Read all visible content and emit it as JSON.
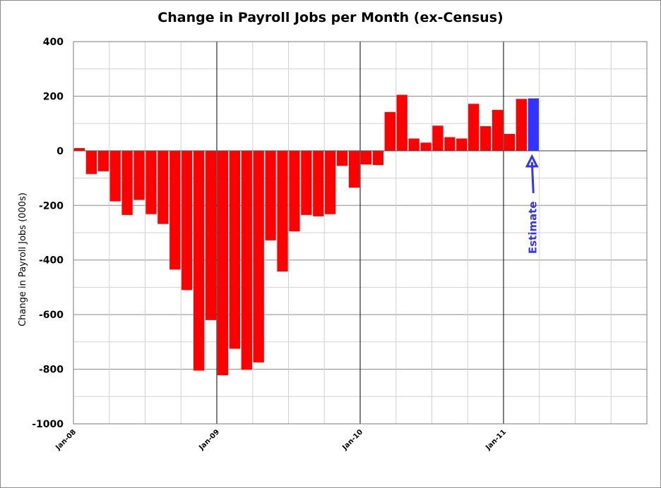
{
  "chart_data": {
    "type": "bar",
    "title": "Change in Payroll Jobs per Month (ex-Census)",
    "xlabel": "",
    "ylabel": "Change in Payroll Jobs (000s)",
    "ylim": [
      -1000,
      400
    ],
    "yticks": [
      400,
      200,
      0,
      -200,
      -400,
      -600,
      -800,
      -1000
    ],
    "x_tick_labels": [
      "Jan-08",
      "Jan-09",
      "Jan-10",
      "Jan-11"
    ],
    "x_range": [
      "Jan-08",
      "Dec-11"
    ],
    "grid": true,
    "categories": [
      "Jan-08",
      "Feb-08",
      "Mar-08",
      "Apr-08",
      "May-08",
      "Jun-08",
      "Jul-08",
      "Aug-08",
      "Sep-08",
      "Oct-08",
      "Nov-08",
      "Dec-08",
      "Jan-09",
      "Feb-09",
      "Mar-09",
      "Apr-09",
      "May-09",
      "Jun-09",
      "Jul-09",
      "Aug-09",
      "Sep-09",
      "Oct-09",
      "Nov-09",
      "Dec-09",
      "Jan-10",
      "Feb-10",
      "Mar-10",
      "Apr-10",
      "May-10",
      "Jun-10",
      "Jul-10",
      "Aug-10",
      "Sep-10",
      "Oct-10",
      "Nov-10",
      "Dec-10",
      "Jan-11",
      "Feb-11",
      "Mar-11"
    ],
    "series": [
      {
        "values": [
          10,
          -85,
          -75,
          -185,
          -235,
          -180,
          -232,
          -268,
          -435,
          -510,
          -805,
          -620,
          -822,
          -725,
          -802,
          -775,
          -328,
          -442,
          -295,
          -235,
          -240,
          -232,
          -55,
          -135,
          -50,
          -52,
          142,
          205,
          45,
          30,
          92,
          50,
          45,
          172,
          90,
          150,
          62,
          190,
          192
        ],
        "color": "#ff0000"
      }
    ],
    "highlight": {
      "category": "Mar-11",
      "color": "#3333ff"
    },
    "annotations": [
      {
        "text": "Estimate",
        "target": "Mar-11",
        "color": "#3333ff"
      }
    ]
  }
}
